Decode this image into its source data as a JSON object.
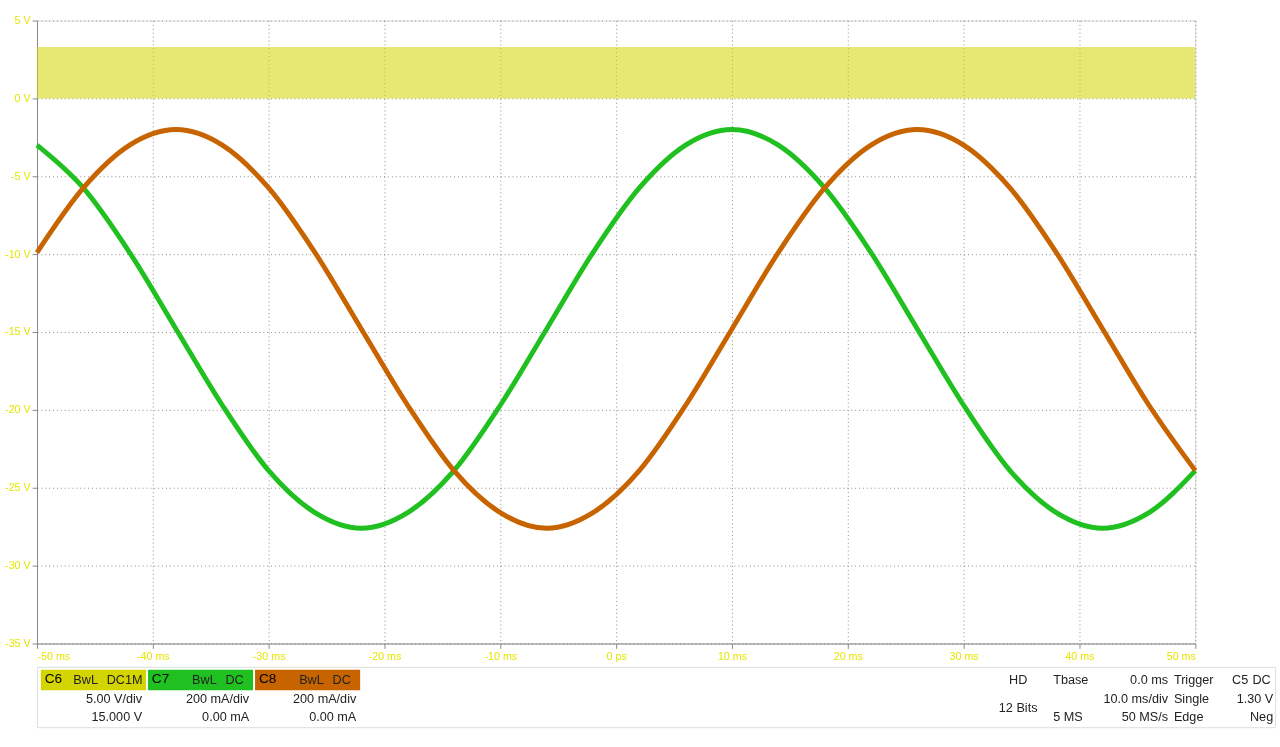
{
  "chart_data": {
    "type": "line",
    "xlim": [
      -50,
      50
    ],
    "xticks": [
      {
        "value": -50,
        "label": "-50 ms"
      },
      {
        "value": -40,
        "label": "-40 ms"
      },
      {
        "value": -30,
        "label": "-30 ms"
      },
      {
        "value": -20,
        "label": "-20 ms"
      },
      {
        "value": -10,
        "label": "-10 ms"
      },
      {
        "value": 0,
        "label": "0 ps"
      },
      {
        "value": 10,
        "label": "10 ms"
      },
      {
        "value": 20,
        "label": "20 ms"
      },
      {
        "value": 30,
        "label": "30 ms"
      },
      {
        "value": 40,
        "label": "40 ms"
      },
      {
        "value": 50,
        "label": "50 ms"
      }
    ],
    "ylim": [
      -35,
      5
    ],
    "yticks": [
      {
        "value": 5,
        "label": "5 V"
      },
      {
        "value": 0,
        "label": "0 V"
      },
      {
        "value": -5,
        "label": "-5 V"
      },
      {
        "value": -10,
        "label": "-10 V"
      },
      {
        "value": -15,
        "label": "-15 V"
      },
      {
        "value": -20,
        "label": "-20 V"
      },
      {
        "value": -25,
        "label": "-25 V"
      },
      {
        "value": -30,
        "label": "-30 V"
      },
      {
        "value": -35,
        "label": "-35 V"
      }
    ],
    "grid": true,
    "legend": false,
    "series": [
      {
        "name": "C6",
        "type": "area",
        "color": "#d4d400",
        "x": [
          -50,
          50
        ],
        "values": [
          3.3,
          3.3
        ]
      },
      {
        "name": "C7",
        "color": "#1fc01f",
        "x": [
          -50,
          -46,
          -42,
          -38,
          -34,
          -30,
          -26,
          -22,
          -18,
          -14,
          -10,
          -6,
          -2,
          2,
          6,
          10,
          14,
          18,
          22,
          26,
          30,
          34,
          38,
          42,
          46,
          50
        ],
        "values": [
          -3.0,
          -5.75,
          -9.9,
          -14.8,
          -19.7,
          -23.9,
          -26.6,
          -27.6,
          -26.6,
          -23.9,
          -19.7,
          -14.8,
          -9.9,
          -5.75,
          -3.0,
          -2.0,
          -3.0,
          -5.75,
          -9.9,
          -14.8,
          -19.7,
          -23.9,
          -26.6,
          -27.6,
          -26.6,
          -23.9
        ]
      },
      {
        "name": "C8",
        "color": "#c86400",
        "x": [
          -50,
          -46,
          -42,
          -38,
          -34,
          -30,
          -26,
          -22,
          -18,
          -14,
          -10,
          -6,
          -2,
          2,
          6,
          10,
          14,
          18,
          22,
          26,
          30,
          34,
          38,
          42,
          46,
          50
        ],
        "values": [
          -9.9,
          -5.75,
          -3.0,
          -2.0,
          -3.0,
          -5.75,
          -9.9,
          -14.8,
          -19.7,
          -23.9,
          -26.6,
          -27.6,
          -26.6,
          -23.9,
          -19.7,
          -14.8,
          -9.9,
          -5.75,
          -3.0,
          -2.0,
          -3.0,
          -5.75,
          -9.9,
          -14.8,
          -19.7,
          -23.9
        ]
      }
    ],
    "annotations": [
      "BwL",
      "DC1M",
      "5.00 V/div",
      "15.000 V",
      "BwL",
      "DC",
      "200 mA/div",
      "0.00 mA",
      "BwL",
      "DC",
      "200 mA/div",
      "0.00 mA",
      "HD",
      "12 Bits",
      "Tbase",
      "0.0 ms",
      "10.0 ms/div",
      "5 MS",
      "50 MS/s",
      "Trigger",
      "C5",
      "DC",
      "Single",
      "1.30 V",
      "Edge",
      "Neg"
    ]
  }
}
